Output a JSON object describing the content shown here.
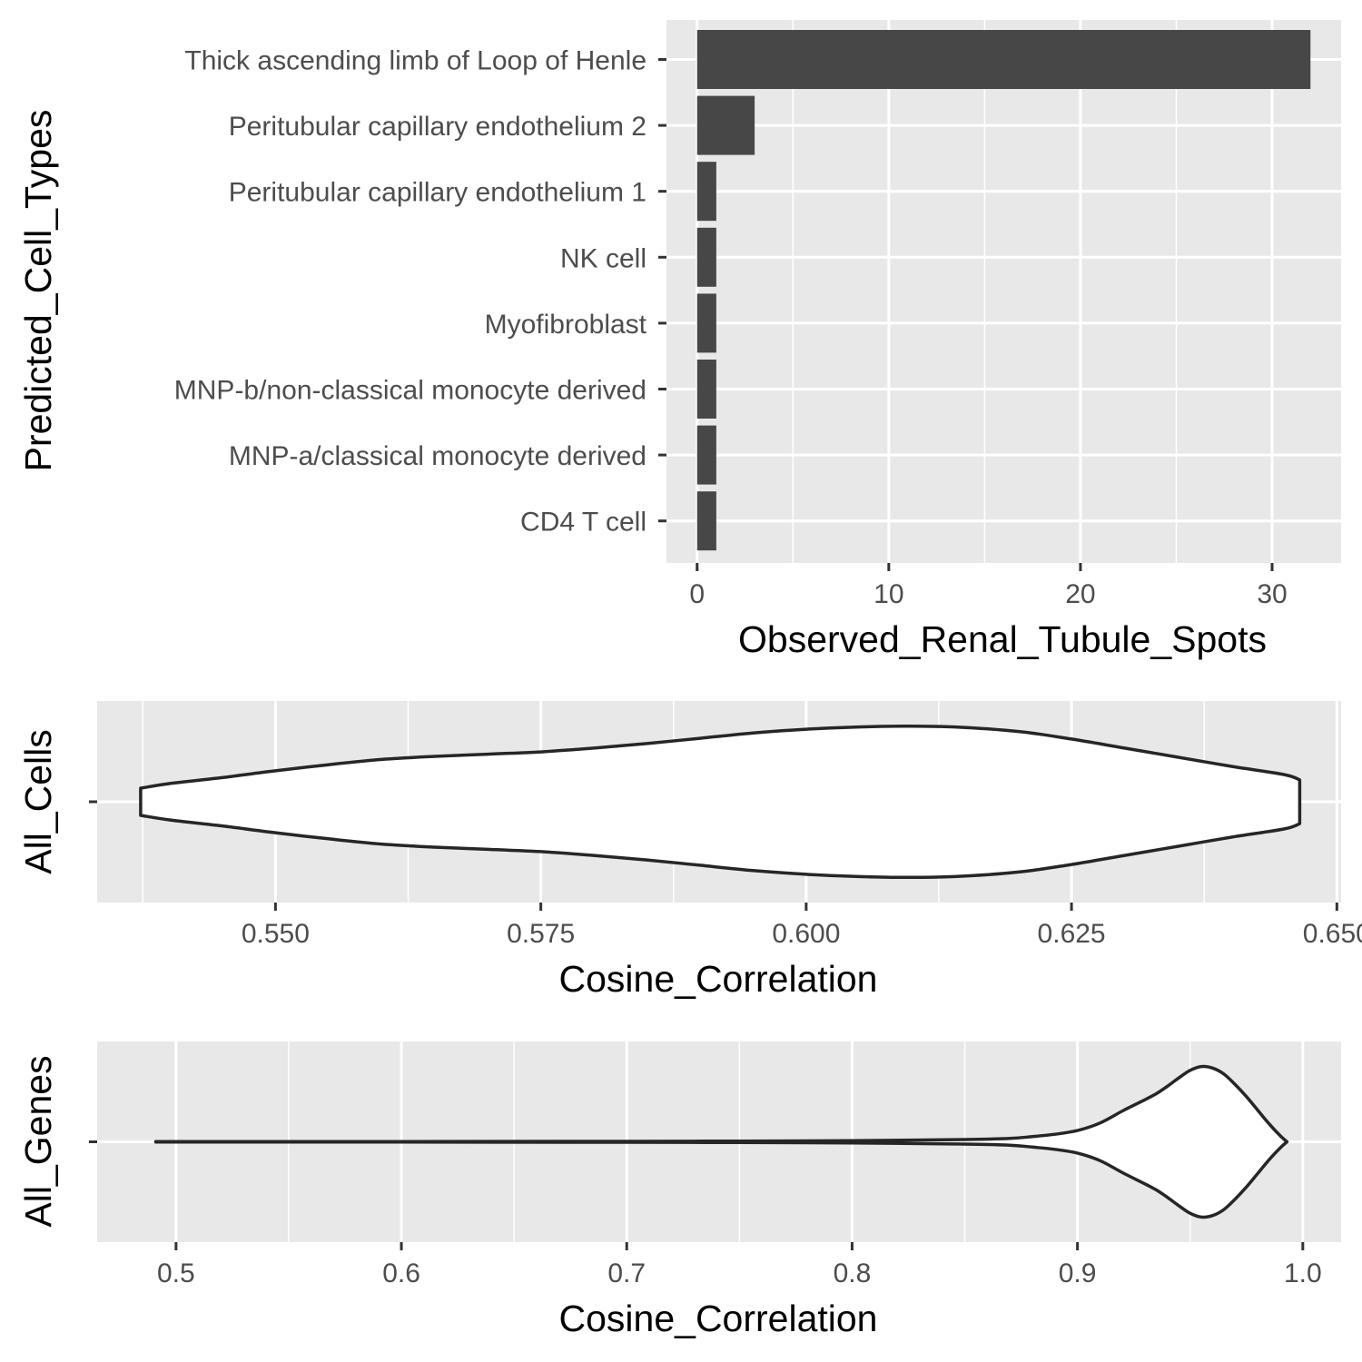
{
  "chart_data": [
    {
      "type": "bar",
      "orientation": "horizontal",
      "categories": [
        "Thick ascending limb of Loop of Henle",
        "Peritubular capillary endothelium 2",
        "Peritubular capillary endothelium 1",
        "NK cell",
        "Myofibroblast",
        "MNP-b/non-classical monocyte derived",
        "MNP-a/classical monocyte derived",
        "CD4 T cell"
      ],
      "values": [
        32,
        3,
        1,
        1,
        1,
        1,
        1,
        1
      ],
      "xlabel": "Observed_Renal_Tubule_Spots",
      "ylabel": "Predicted_Cell_Types",
      "xlim": [
        -1.6,
        33.6
      ],
      "xticks": [
        0,
        10,
        20,
        30
      ],
      "xtick_labels": [
        "0",
        "10",
        "20",
        "30"
      ],
      "bar_color": "#474747",
      "grid": true
    },
    {
      "type": "violin",
      "orientation": "horizontal",
      "category": "All_Cells",
      "xlabel": "Cosine_Correlation",
      "ylabel": "All_Cells",
      "xlim": [
        0.5332,
        0.6504
      ],
      "xticks": [
        0.55,
        0.575,
        0.6,
        0.625,
        0.65
      ],
      "xtick_labels": [
        "0.550",
        "0.575",
        "0.600",
        "0.625",
        "0.650"
      ],
      "density": {
        "x": [
          0.5373,
          0.54,
          0.545,
          0.55,
          0.555,
          0.56,
          0.565,
          0.57,
          0.575,
          0.58,
          0.585,
          0.59,
          0.595,
          0.6,
          0.605,
          0.609,
          0.614,
          0.62,
          0.625,
          0.63,
          0.635,
          0.64,
          0.645,
          0.6465
        ],
        "width": [
          0.18,
          0.24,
          0.32,
          0.41,
          0.49,
          0.56,
          0.6,
          0.63,
          0.66,
          0.71,
          0.77,
          0.84,
          0.91,
          0.96,
          0.99,
          1.0,
          0.99,
          0.93,
          0.83,
          0.71,
          0.59,
          0.47,
          0.36,
          0.29
        ]
      },
      "fill": "#ffffff",
      "grid": true
    },
    {
      "type": "violin",
      "orientation": "horizontal",
      "category": "All_Genes",
      "xlabel": "Cosine_Correlation",
      "ylabel": "All_Genes",
      "xlim": [
        0.465,
        1.017
      ],
      "xticks": [
        0.5,
        0.6,
        0.7,
        0.8,
        0.9,
        1.0
      ],
      "xtick_labels": [
        "0.5",
        "0.6",
        "0.7",
        "0.8",
        "0.9",
        "1.0"
      ],
      "density": {
        "x": [
          0.491,
          0.6,
          0.7,
          0.75,
          0.8,
          0.85,
          0.87,
          0.88,
          0.89,
          0.9,
          0.91,
          0.92,
          0.93,
          0.935,
          0.94,
          0.945,
          0.95,
          0.955,
          0.96,
          0.965,
          0.97,
          0.975,
          0.98,
          0.985,
          0.99,
          0.993
        ],
        "width": [
          0.003,
          0.004,
          0.006,
          0.01,
          0.015,
          0.03,
          0.045,
          0.07,
          0.1,
          0.15,
          0.25,
          0.41,
          0.56,
          0.64,
          0.74,
          0.85,
          0.95,
          1.0,
          0.98,
          0.9,
          0.76,
          0.6,
          0.42,
          0.24,
          0.08,
          0.0
        ]
      },
      "fill": "#ffffff",
      "grid": true
    }
  ]
}
